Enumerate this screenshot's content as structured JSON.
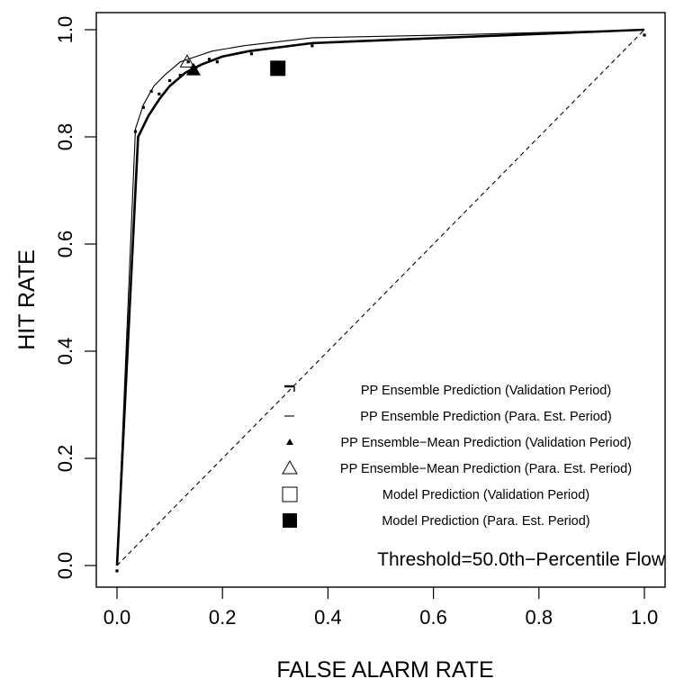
{
  "chart_data": {
    "type": "line",
    "title": "",
    "xlabel": "FALSE ALARM RATE",
    "ylabel": "HIT RATE",
    "xlim": [
      0,
      1
    ],
    "ylim": [
      0,
      1
    ],
    "grid": false,
    "x_ticks": [
      "0.0",
      "0.2",
      "0.4",
      "0.6",
      "0.8",
      "1.0"
    ],
    "y_ticks": [
      "0.0",
      "0.2",
      "0.4",
      "0.6",
      "0.8",
      "1.0"
    ],
    "annotation": "Threshold=50.0th−Percentile Flow",
    "legend_position": "bottom-right",
    "reference_line": {
      "x": [
        0,
        1
      ],
      "y": [
        0,
        1
      ],
      "style": "dashed"
    },
    "series": [
      {
        "name": "PP Ensemble Prediction (Validation Period)",
        "kind": "line",
        "color": "#000000",
        "line_width": 2.6,
        "x": [
          0.0,
          0.04,
          0.06,
          0.08,
          0.1,
          0.13,
          0.16,
          0.2,
          0.25,
          0.37,
          0.62,
          1.0
        ],
        "y": [
          0.0,
          0.8,
          0.84,
          0.87,
          0.895,
          0.92,
          0.935,
          0.95,
          0.96,
          0.975,
          0.985,
          1.0
        ]
      },
      {
        "name": "PP Ensemble Prediction (Para. Est. Period)",
        "kind": "line",
        "color": "#000000",
        "line_width": 1.1,
        "x": [
          0.0,
          0.035,
          0.05,
          0.07,
          0.09,
          0.12,
          0.15,
          0.18,
          0.24,
          0.37,
          0.62,
          1.0
        ],
        "y": [
          0.0,
          0.815,
          0.86,
          0.895,
          0.915,
          0.94,
          0.95,
          0.96,
          0.97,
          0.985,
          0.99,
          1.0
        ]
      },
      {
        "name": "PP Ensemble−Mean Prediction (Validation Period)",
        "kind": "marker",
        "marker": "filled-triangle",
        "x": [
          0.145
        ],
        "y": [
          0.925
        ]
      },
      {
        "name": "PP Ensemble−Mean Prediction (Para. Est. Period)",
        "kind": "marker",
        "marker": "open-triangle",
        "x": [
          0.133
        ],
        "y": [
          0.94
        ]
      },
      {
        "name": "Model Prediction (Validation Period)",
        "kind": "marker",
        "marker": "open-square",
        "x": [],
        "y": []
      },
      {
        "name": "Model Prediction (Para. Est. Period)",
        "kind": "marker",
        "marker": "filled-square",
        "x": [
          0.305
        ],
        "y": [
          0.928
        ]
      }
    ],
    "ensemble_dots": {
      "x": [
        0.0,
        0.035,
        0.05,
        0.065,
        0.08,
        0.1,
        0.12,
        0.135,
        0.15,
        0.175,
        0.19,
        0.255,
        0.37,
        1.0
      ],
      "y": [
        -0.01,
        0.81,
        0.855,
        0.885,
        0.88,
        0.905,
        0.915,
        0.94,
        0.93,
        0.945,
        0.94,
        0.955,
        0.97,
        0.99
      ]
    }
  }
}
